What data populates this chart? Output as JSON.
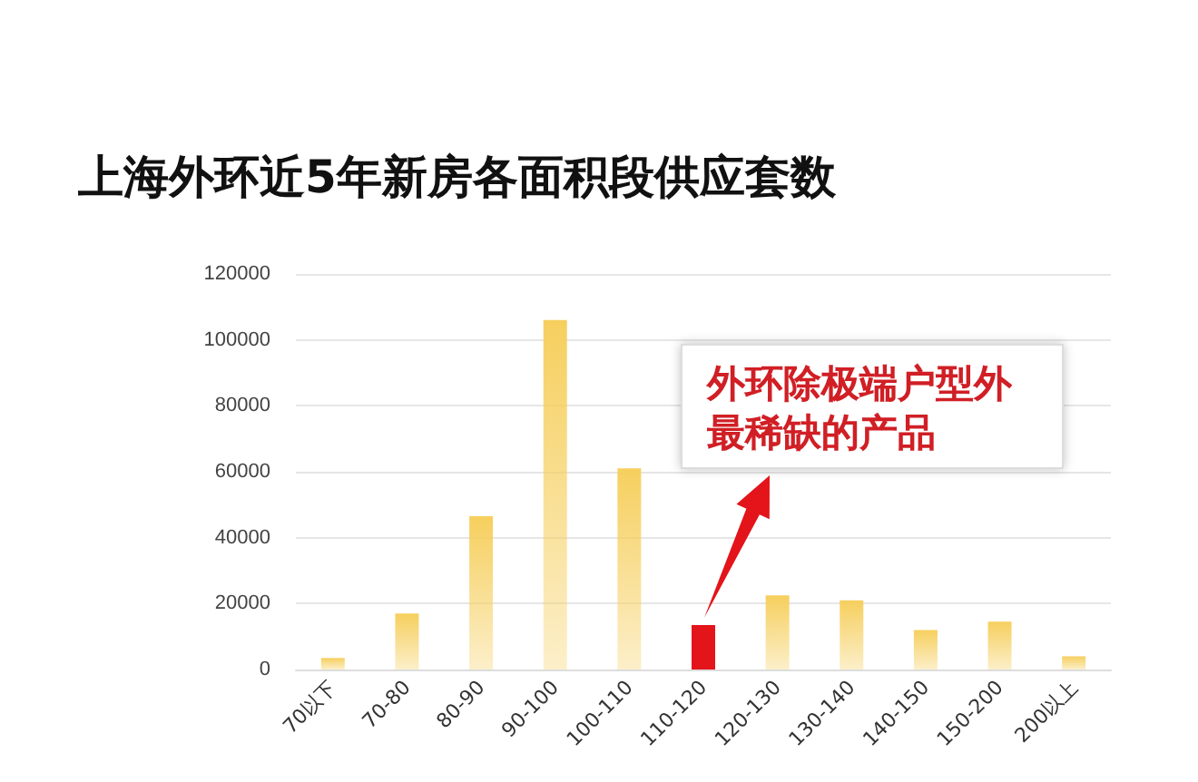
{
  "chart_data": {
    "type": "bar",
    "title": "上海外环近5年新房各面积段供应套数",
    "categories": [
      "70以下",
      "70-80",
      "80-90",
      "90-100",
      "100-110",
      "110-120",
      "120-130",
      "130-140",
      "140-150",
      "150-200",
      "200以上"
    ],
    "values": [
      3500,
      17000,
      46500,
      106000,
      61000,
      13500,
      22500,
      21000,
      12000,
      14500,
      4000
    ],
    "colors": [
      "#f6cf5e",
      "#f6cf5e",
      "#f6cf5e",
      "#f6cf5e",
      "#f6cf5e",
      "#e3141a",
      "#f6cf5e",
      "#f6cf5e",
      "#f6cf5e",
      "#f6cf5e",
      "#f6cf5e"
    ],
    "ylim": [
      0,
      120000
    ],
    "yticks": [
      0,
      20000,
      40000,
      60000,
      80000,
      100000,
      120000
    ],
    "grid": "y",
    "annotations": [
      "外环除极端户型外最稀缺的产品"
    ]
  }
}
